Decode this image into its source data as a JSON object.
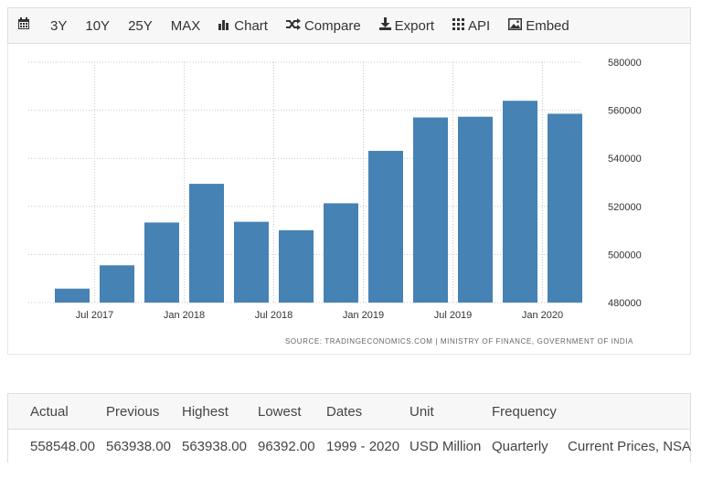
{
  "toolbar": {
    "calendar_icon": "calendar-icon",
    "ranges": [
      "3Y",
      "10Y",
      "25Y",
      "MAX"
    ],
    "chart_label": "Chart",
    "compare_label": "Compare",
    "export_label": "Export",
    "api_label": "API",
    "embed_label": "Embed"
  },
  "colors": {
    "bar": "#4682b4",
    "grid": "#c8c8c8",
    "toolbar_bg": "#f7f7f7"
  },
  "chart_data": {
    "type": "bar",
    "categories": [
      "Q2 2017",
      "Q3 2017",
      "Q4 2017",
      "Q1 2018",
      "Q2 2018",
      "Q3 2018",
      "Q4 2018",
      "Q1 2019",
      "Q2 2019",
      "Q3 2019",
      "Q4 2019",
      "Q1 2020"
    ],
    "values": [
      485800,
      495500,
      513300,
      529400,
      513600,
      510100,
      521300,
      543100,
      557000,
      557300,
      563938,
      558548
    ],
    "ylim": [
      480000,
      580000
    ],
    "yticks": [
      "480000",
      "500000",
      "520000",
      "540000",
      "560000",
      "580000"
    ],
    "xtick_labels": [
      "Jul 2017",
      "Jan 2018",
      "Jul 2018",
      "Jan 2019",
      "Jul 2019",
      "Jan 2020"
    ],
    "xtick_positions": [
      0.5,
      2.5,
      4.5,
      6.5,
      8.5,
      10.5
    ],
    "y_axis_side": "right",
    "grid": true,
    "source": "SOURCE: TRADINGECONOMICS.COM | MINISTRY OF FINANCE, GOVERNMENT OF INDIA"
  },
  "table": {
    "headers": [
      "Actual",
      "Previous",
      "Highest",
      "Lowest",
      "Dates",
      "Unit",
      "Frequency",
      ""
    ],
    "values": [
      "558548.00",
      "563938.00",
      "563938.00",
      "96392.00",
      "1999 - 2020",
      "USD Million",
      "Quarterly",
      "Current Prices, NSA"
    ]
  }
}
